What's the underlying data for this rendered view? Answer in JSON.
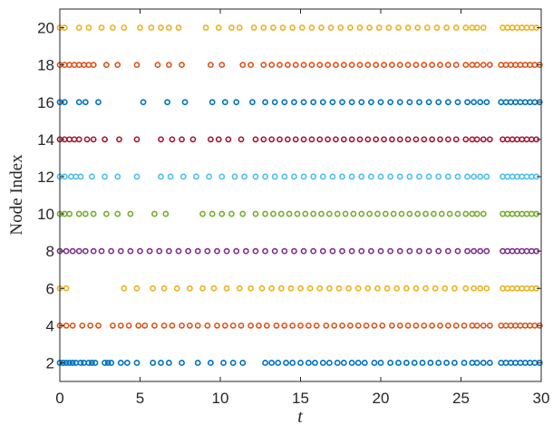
{
  "chart_data": {
    "type": "scatter",
    "title": "",
    "xlabel": "t",
    "ylabel": "Node Index",
    "xlim": [
      0,
      30
    ],
    "ylim": [
      1,
      21
    ],
    "xticks": [
      0,
      5,
      10,
      15,
      20,
      25,
      30
    ],
    "yticks": [
      2,
      4,
      6,
      8,
      10,
      12,
      14,
      16,
      18,
      20
    ],
    "grid": false,
    "legend": "none",
    "marker": "circle-open",
    "series": [
      {
        "node": 2,
        "color": "#0072BD",
        "times": [
          0.0,
          0.2,
          0.4,
          0.6,
          0.8,
          1.0,
          1.3,
          1.5,
          1.8,
          2.0,
          2.2,
          2.8,
          3.0,
          3.2,
          3.8,
          4.2,
          4.8,
          5.8,
          6.3,
          6.8,
          7.6,
          8.6,
          9.4,
          10.2,
          10.8,
          11.4,
          12.8,
          13.2,
          13.6,
          14.1,
          14.5,
          15.0,
          15.5,
          15.9,
          16.4,
          16.8,
          17.3,
          17.7,
          18.2,
          18.6,
          19.0,
          19.6,
          20.0,
          20.6,
          21.1,
          21.6,
          22.1,
          22.6,
          23.1,
          23.6,
          24.1,
          24.6,
          25.2,
          25.7,
          26.0,
          26.4,
          26.8,
          27.5,
          27.8,
          28.1,
          28.4,
          28.7,
          29.0,
          29.3,
          29.6,
          29.9
        ]
      },
      {
        "node": 4,
        "color": "#D95319",
        "times": [
          0.0,
          0.4,
          0.8,
          1.4,
          1.9,
          2.4,
          3.3,
          3.8,
          4.3,
          4.9,
          5.3,
          5.9,
          6.5,
          7.0,
          7.6,
          8.1,
          8.6,
          9.2,
          9.8,
          10.3,
          10.8,
          11.3,
          11.9,
          12.4,
          12.9,
          13.5,
          14.0,
          14.5,
          15.0,
          15.5,
          16.0,
          16.6,
          17.1,
          17.6,
          18.1,
          18.6,
          19.1,
          19.6,
          20.1,
          20.7,
          21.2,
          21.7,
          22.2,
          22.7,
          23.2,
          23.7,
          24.2,
          24.7,
          25.2,
          25.7,
          26.0,
          26.4,
          26.8,
          27.5,
          27.8,
          28.1,
          28.4,
          28.7,
          29.0,
          29.3,
          29.6,
          29.9
        ]
      },
      {
        "node": 6,
        "color": "#EDB120",
        "times": [
          0.0,
          0.4,
          4.0,
          4.8,
          5.8,
          6.5,
          7.3,
          8.1,
          8.9,
          9.6,
          10.4,
          11.2,
          11.9,
          12.6,
          13.2,
          13.8,
          14.4,
          15.0,
          15.6,
          16.2,
          16.8,
          17.4,
          18.0,
          18.6,
          19.2,
          19.8,
          20.4,
          21.0,
          21.6,
          22.2,
          22.8,
          23.4,
          24.0,
          24.6,
          25.3,
          25.8,
          26.2,
          26.6,
          27.6,
          27.9,
          28.2,
          28.5,
          28.8,
          29.1,
          29.4,
          29.7
        ]
      },
      {
        "node": 8,
        "color": "#7E2F8E",
        "times": [
          0.0,
          0.4,
          0.8,
          1.2,
          1.6,
          2.1,
          2.6,
          3.2,
          3.8,
          4.4,
          5.0,
          5.6,
          6.2,
          6.8,
          7.4,
          8.0,
          8.6,
          9.2,
          9.8,
          10.4,
          11.0,
          11.6,
          12.2,
          12.8,
          13.4,
          14.0,
          14.6,
          15.2,
          15.8,
          16.4,
          17.0,
          17.6,
          18.2,
          18.8,
          19.4,
          20.0,
          20.6,
          21.2,
          21.8,
          22.4,
          23.0,
          23.6,
          24.2,
          24.8,
          25.4,
          25.8,
          26.2,
          26.6,
          27.6,
          27.9,
          28.2,
          28.5,
          28.8,
          29.1,
          29.4,
          29.7
        ]
      },
      {
        "node": 10,
        "color": "#77AC30",
        "times": [
          0.0,
          0.3,
          0.6,
          1.2,
          1.6,
          2.1,
          2.9,
          3.6,
          4.4,
          5.9,
          6.6,
          8.9,
          9.5,
          10.1,
          10.7,
          11.4,
          12.2,
          12.8,
          13.3,
          13.8,
          14.3,
          14.8,
          15.3,
          15.8,
          16.3,
          16.8,
          17.3,
          17.8,
          18.3,
          18.8,
          19.3,
          19.8,
          20.3,
          20.8,
          21.3,
          21.8,
          22.3,
          22.8,
          23.3,
          23.8,
          24.3,
          24.8,
          25.3,
          25.7,
          26.0,
          26.4,
          27.6,
          27.9,
          28.2,
          28.5,
          28.8,
          29.1,
          29.4,
          29.7
        ]
      },
      {
        "node": 12,
        "color": "#4DBEEE",
        "times": [
          0.0,
          0.3,
          0.7,
          1.0,
          1.3,
          2.0,
          2.8,
          3.6,
          4.8,
          6.3,
          6.9,
          7.7,
          8.5,
          9.3,
          10.1,
          10.9,
          11.5,
          12.2,
          12.8,
          13.4,
          14.0,
          14.6,
          15.2,
          15.8,
          16.4,
          17.0,
          17.6,
          18.2,
          18.8,
          19.4,
          20.0,
          20.6,
          21.2,
          21.8,
          22.4,
          23.0,
          23.6,
          24.2,
          24.8,
          25.4,
          25.8,
          26.2,
          26.6,
          27.6,
          27.9,
          28.2,
          28.5,
          28.8,
          29.1,
          29.4,
          29.7
        ]
      },
      {
        "node": 14,
        "color": "#A2142F",
        "times": [
          0.0,
          0.3,
          0.6,
          0.9,
          1.2,
          1.7,
          2.1,
          2.8,
          3.7,
          4.8,
          6.3,
          7.0,
          7.6,
          8.3,
          9.4,
          9.9,
          10.5,
          11.3,
          12.2,
          12.7,
          13.2,
          13.7,
          14.2,
          14.7,
          15.2,
          15.7,
          16.2,
          16.7,
          17.2,
          17.7,
          18.2,
          18.7,
          19.2,
          19.7,
          20.2,
          20.7,
          21.2,
          21.7,
          22.2,
          22.7,
          23.2,
          23.7,
          24.2,
          24.7,
          25.3,
          25.7,
          26.0,
          26.4,
          26.8,
          27.6,
          27.9,
          28.2,
          28.5,
          28.8,
          29.1,
          29.4,
          29.7
        ]
      },
      {
        "node": 16,
        "color": "#0072BD",
        "times": [
          0.0,
          0.3,
          1.2,
          1.6,
          2.4,
          5.2,
          6.7,
          7.8,
          9.5,
          10.3,
          11.0,
          12.0,
          12.8,
          13.4,
          14.0,
          14.6,
          15.2,
          15.8,
          16.4,
          17.0,
          17.6,
          18.2,
          18.8,
          19.4,
          20.0,
          20.6,
          21.2,
          21.8,
          22.4,
          23.0,
          23.6,
          24.2,
          24.8,
          25.4,
          25.8,
          26.2,
          26.6,
          27.5,
          27.8,
          28.1,
          28.4,
          28.7,
          29.0,
          29.3,
          29.6,
          29.9
        ]
      },
      {
        "node": 18,
        "color": "#D95319",
        "times": [
          0.0,
          0.3,
          0.6,
          0.9,
          1.2,
          1.5,
          1.8,
          2.1,
          2.9,
          3.6,
          4.8,
          6.1,
          6.8,
          7.6,
          9.4,
          10.1,
          11.4,
          11.9,
          12.7,
          13.2,
          13.7,
          14.2,
          14.7,
          15.2,
          15.7,
          16.2,
          16.7,
          17.2,
          17.7,
          18.2,
          18.7,
          19.2,
          19.7,
          20.2,
          20.7,
          21.2,
          21.7,
          22.2,
          22.7,
          23.2,
          23.7,
          24.2,
          24.7,
          25.3,
          25.7,
          26.0,
          26.4,
          26.8,
          27.5,
          27.8,
          28.1,
          28.4,
          28.7,
          29.0,
          29.3,
          29.6,
          29.9
        ]
      },
      {
        "node": 20,
        "color": "#EDB120",
        "times": [
          0.0,
          0.3,
          1.2,
          1.8,
          2.6,
          3.3,
          4.0,
          5.0,
          5.7,
          6.3,
          6.8,
          7.4,
          9.1,
          9.9,
          10.7,
          11.2,
          12.1,
          12.7,
          13.3,
          13.9,
          14.5,
          15.1,
          15.7,
          16.3,
          16.9,
          17.5,
          18.1,
          18.7,
          19.3,
          19.9,
          20.5,
          21.1,
          21.7,
          22.3,
          22.9,
          23.5,
          24.1,
          24.7,
          25.3,
          25.7,
          26.0,
          26.4,
          27.6,
          27.9,
          28.2,
          28.5,
          28.8,
          29.1,
          29.4,
          29.7
        ]
      }
    ]
  }
}
